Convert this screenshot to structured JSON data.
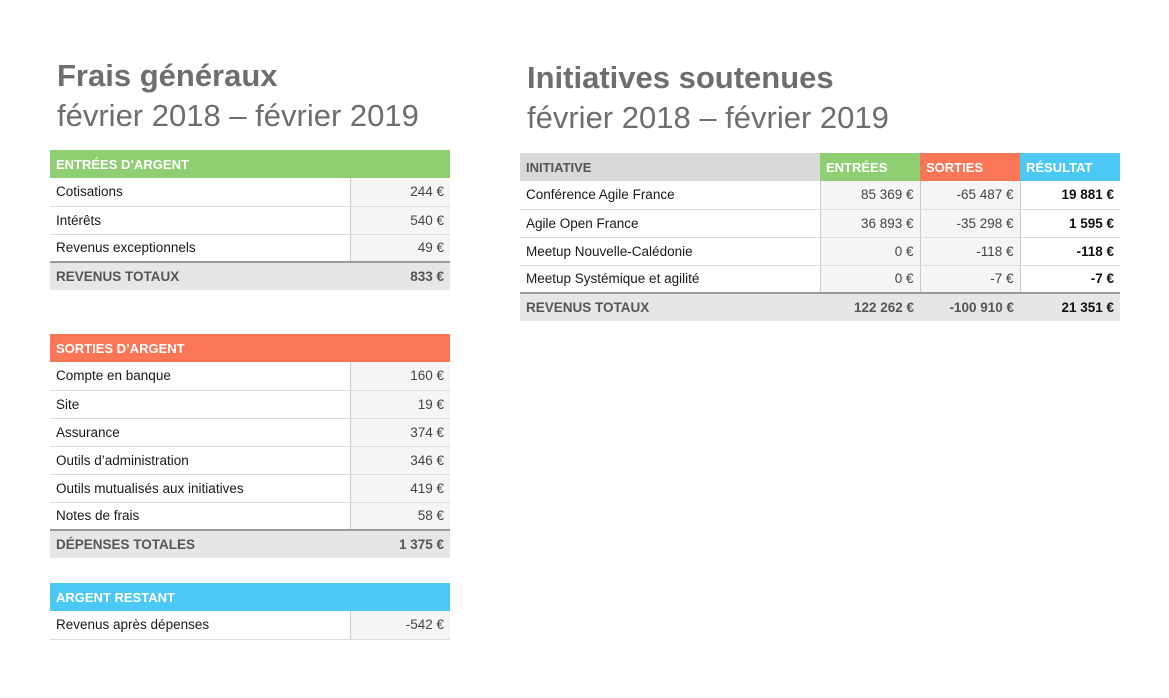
{
  "left": {
    "title": "Frais généraux",
    "subtitle": "février 2018 – février 2019",
    "income": {
      "header": "ENTRÉES D’ARGENT",
      "rows": [
        {
          "label": "Cotisations",
          "value": "244 €"
        },
        {
          "label": "Intérêts",
          "value": "540 €"
        },
        {
          "label": "Revenus exceptionnels",
          "value": "49 €"
        }
      ],
      "total_label": "REVENUS TOTAUX",
      "total_value": "833 €",
      "color": "#8fce72"
    },
    "expenses": {
      "header": "SORTIES D’ARGENT",
      "rows": [
        {
          "label": "Compte en banque",
          "value": "160 €"
        },
        {
          "label": "Site",
          "value": "19 €"
        },
        {
          "label": "Assurance",
          "value": "374 €"
        },
        {
          "label": "Outils d’administration",
          "value": "346 €"
        },
        {
          "label": "Outils mutualisés aux initiatives",
          "value": "419 €"
        },
        {
          "label": "Notes de frais",
          "value": "58 €"
        }
      ],
      "total_label": "DÉPENSES TOTALES",
      "total_value": "1 375 €",
      "color": "#fa7656"
    },
    "remaining": {
      "header": "ARGENT RESTANT",
      "rows": [
        {
          "label": "Revenus après dépenses",
          "value": "-542 €"
        }
      ],
      "color": "#4cc8f5"
    }
  },
  "right": {
    "title": "Initiatives soutenues",
    "subtitle": "février 2018 – février 2019",
    "headers": {
      "initiative": "INITIATIVE",
      "in": "ENTRÉES",
      "out": "SORTIES",
      "result": "RÉSULTAT"
    },
    "rows": [
      {
        "name": "Conférence Agile France",
        "in": "85 369 €",
        "out": "-65 487 €",
        "result": "19 881 €"
      },
      {
        "name": "Agile Open France",
        "in": "36 893 €",
        "out": "-35 298 €",
        "result": "1 595 €"
      },
      {
        "name": "Meetup Nouvelle-Calédonie",
        "in": "0 €",
        "out": "-118 €",
        "result": "-118 €"
      },
      {
        "name": "Meetup Systémique et agilité",
        "in": "0 €",
        "out": "-7 €",
        "result": "-7 €"
      }
    ],
    "total": {
      "label": "REVENUS TOTAUX",
      "in": "122 262 €",
      "out": "-100 910 €",
      "result": "21 351 €"
    }
  }
}
